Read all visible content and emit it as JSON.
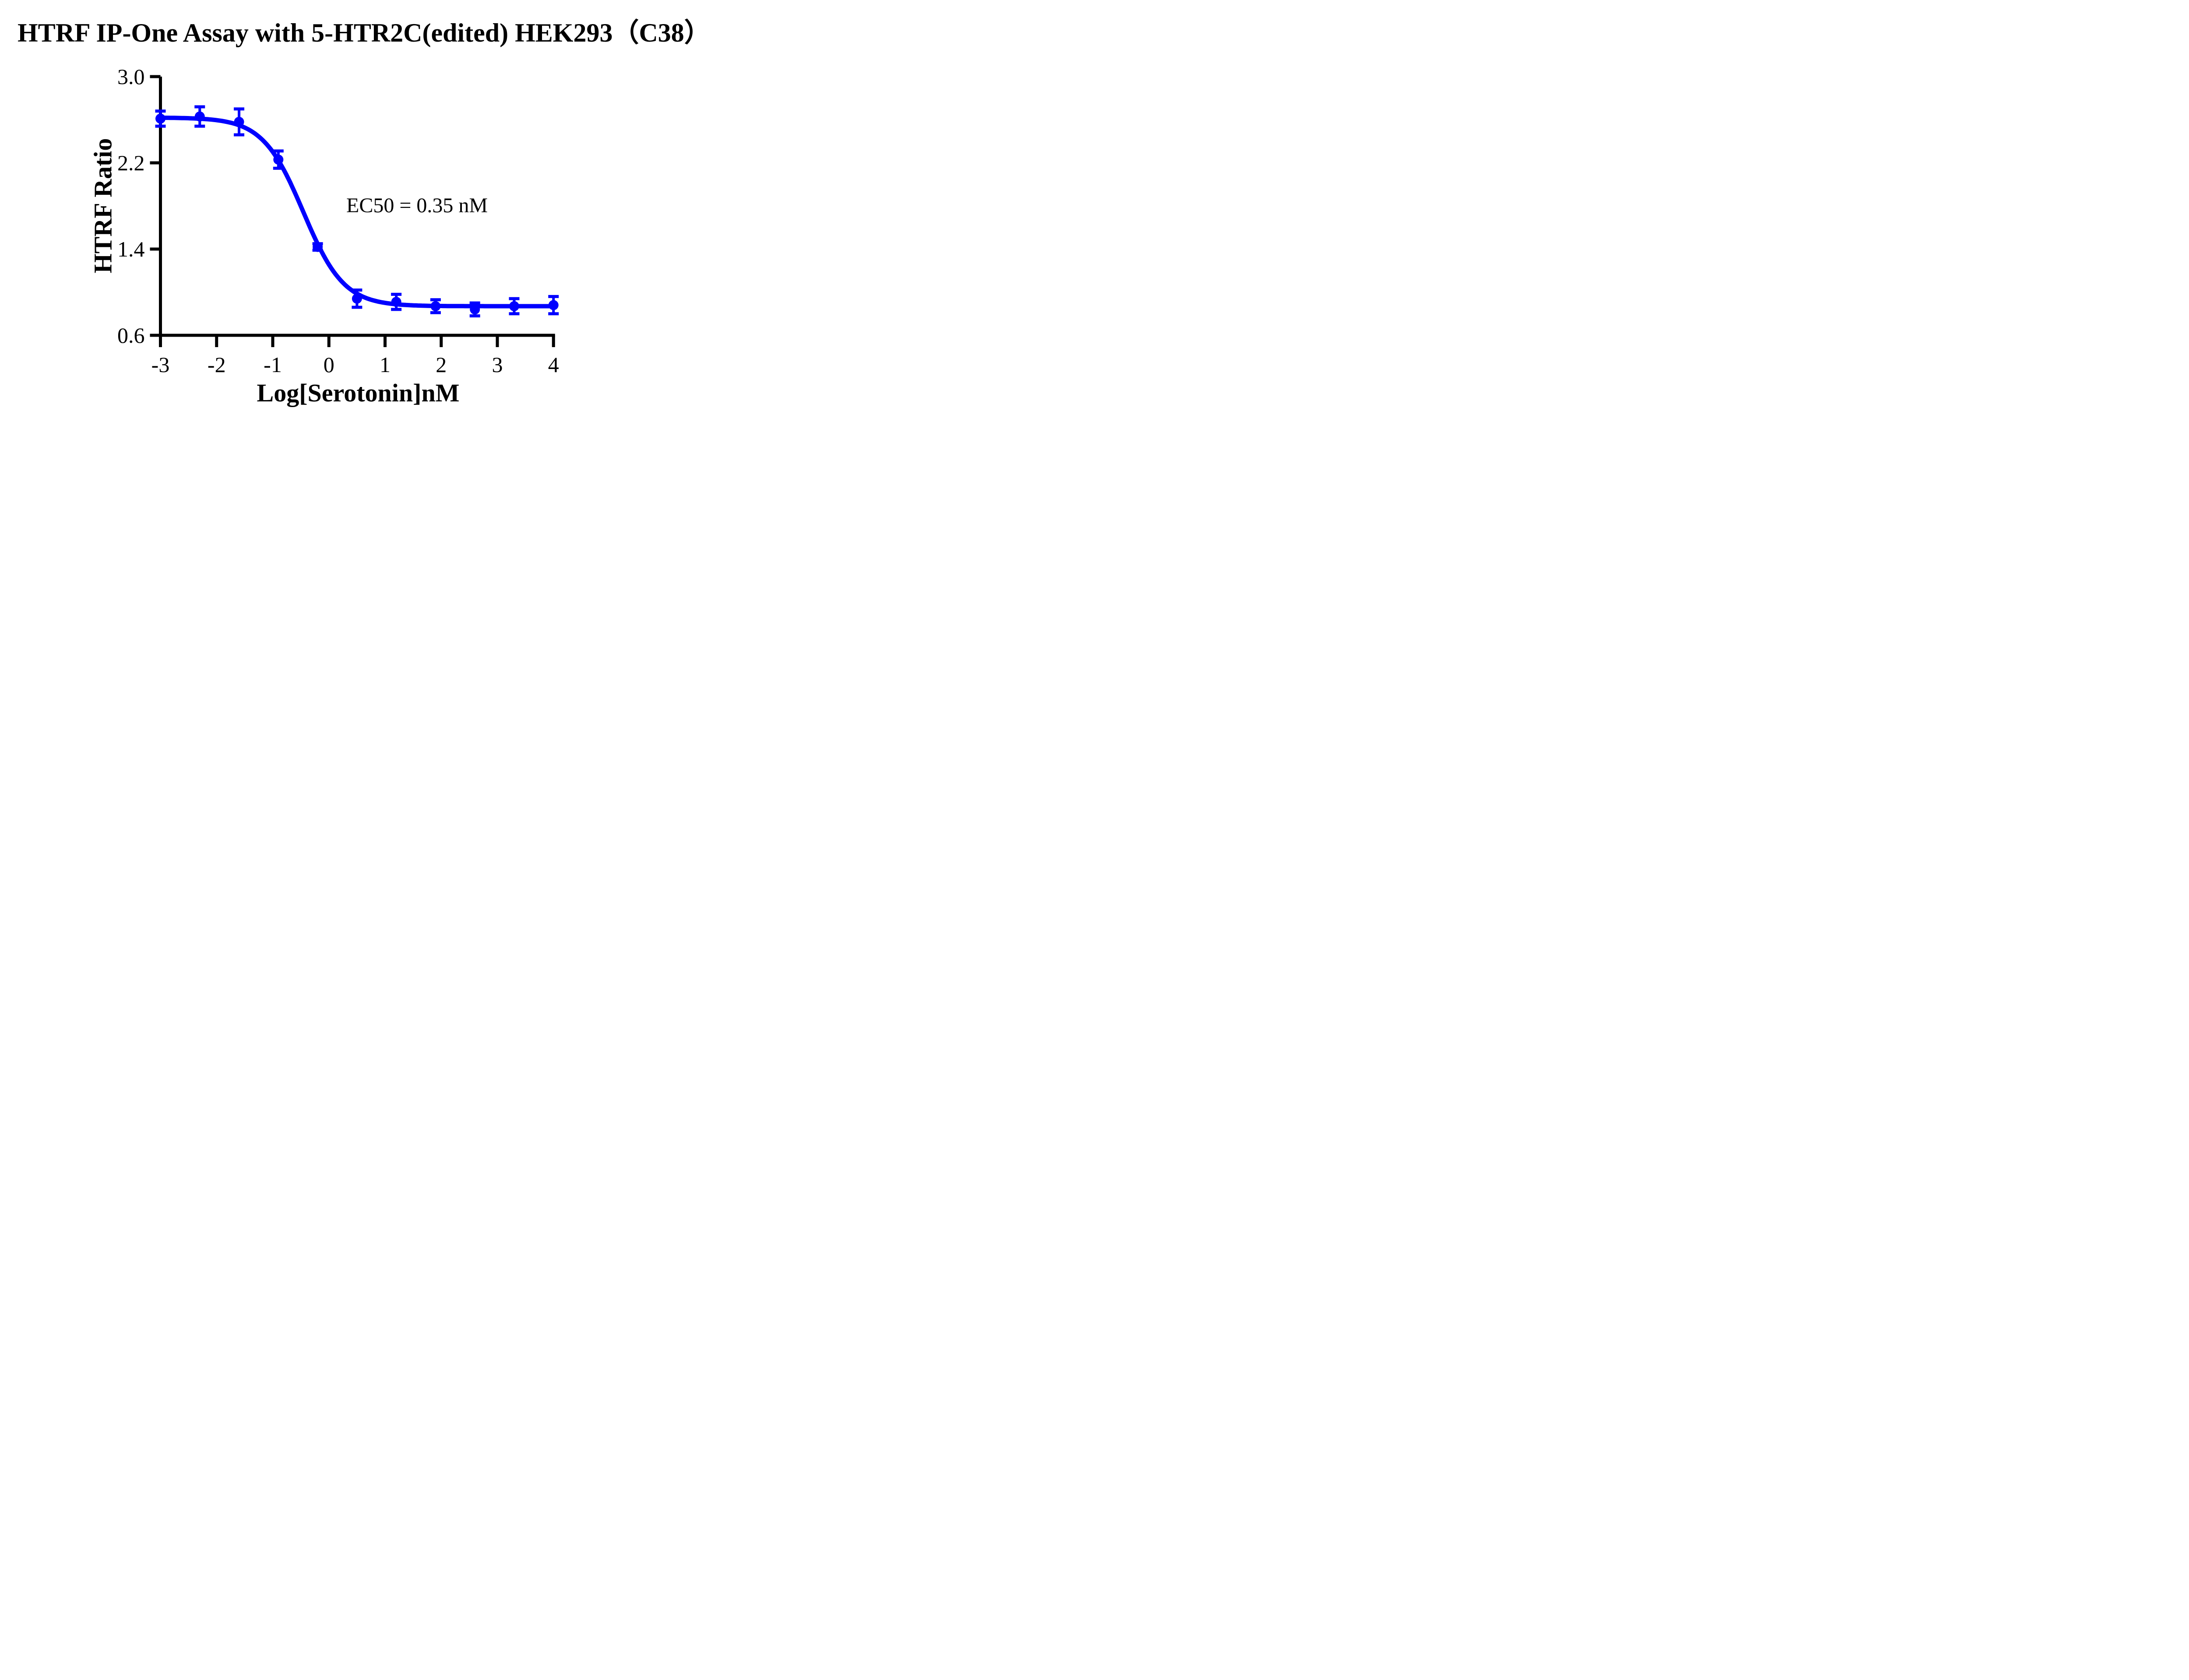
{
  "figure": {
    "background": "#FFFFFF",
    "text_color": "#000000"
  },
  "chart_data": {
    "type": "scatter",
    "title": "HTRF IP-One Assay with 5-HTR2C(edited) HEK293（C38）",
    "xlabel": "Log[Serotonin]nM",
    "ylabel": "HTRF Ratio",
    "annotation": "EC50 = 0.35 nM",
    "ec50_nM": 0.35,
    "xlim": [
      -3,
      4
    ],
    "ylim": [
      0.6,
      3.0
    ],
    "x_ticks": [
      "-3",
      "-2",
      "-1",
      "0",
      "1",
      "2",
      "3",
      "4"
    ],
    "y_ticks": [
      "0.6",
      "1.4",
      "2.2",
      "3.0"
    ],
    "grid": false,
    "legend": "none",
    "series": [
      {
        "name": "Serotonin",
        "color": "#0000FF",
        "marker": "circle",
        "x": [
          -3.0,
          -2.3,
          -1.6,
          -0.9,
          -0.2,
          0.5,
          1.2,
          1.9,
          2.6,
          3.3,
          4.0
        ],
        "y": [
          2.61,
          2.63,
          2.58,
          2.23,
          1.42,
          0.94,
          0.91,
          0.87,
          0.84,
          0.87,
          0.88
        ],
        "yerr": [
          0.07,
          0.09,
          0.12,
          0.08,
          0.03,
          0.08,
          0.07,
          0.06,
          0.06,
          0.07,
          0.08
        ]
      }
    ],
    "fit": {
      "model": "4PL-inhibition",
      "top": 2.62,
      "bottom": 0.87,
      "log_ec50": -0.456,
      "hill_slope": 1.2
    },
    "axis_color": "#000000"
  }
}
